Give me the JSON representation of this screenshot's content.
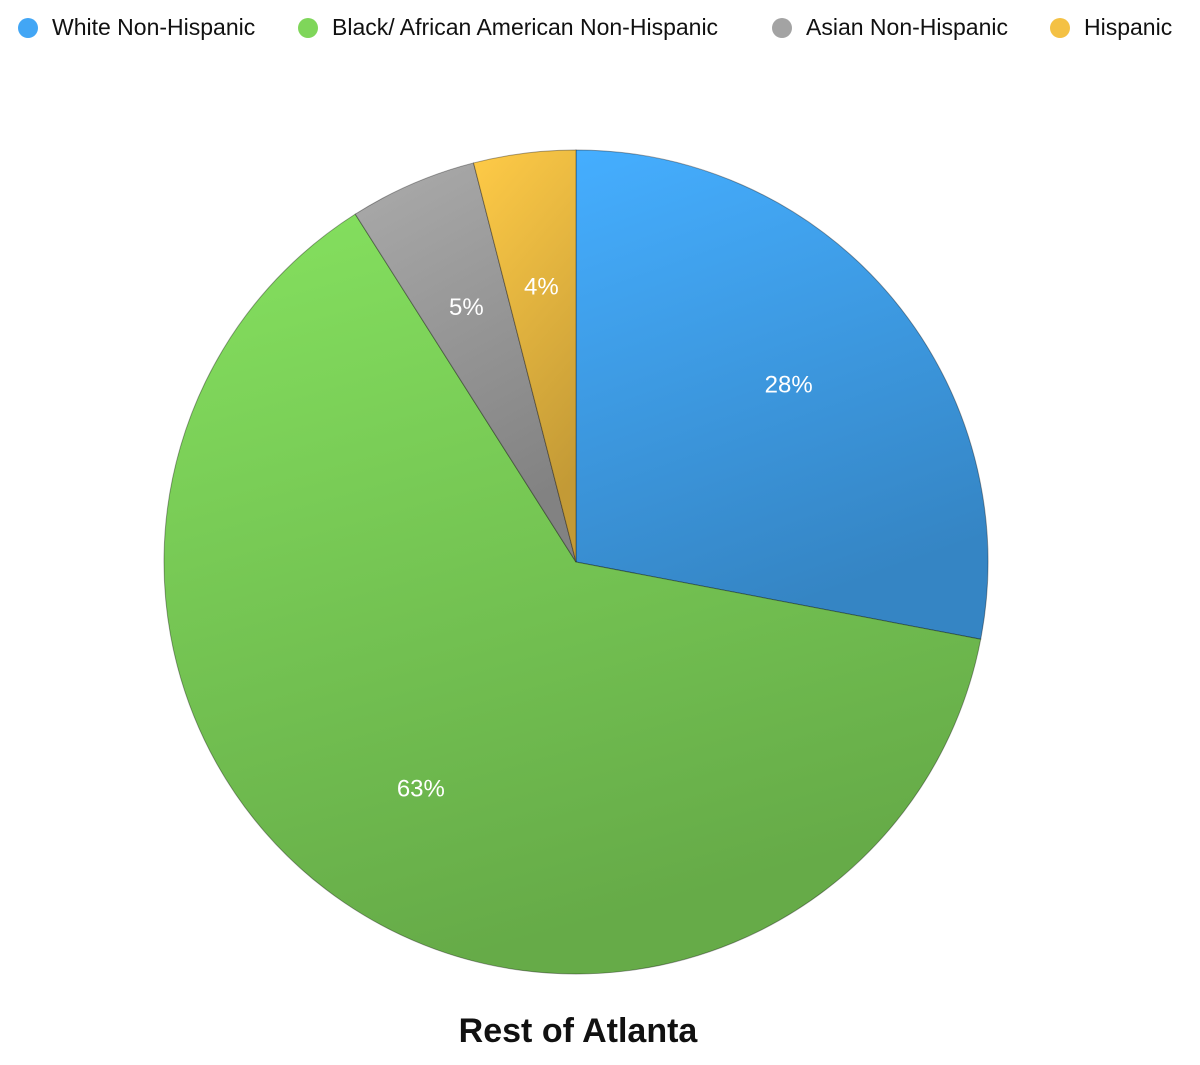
{
  "chart_data": {
    "type": "pie",
    "title": "Rest of Atlanta",
    "categories": [
      "White Non-Hispanic",
      "Black/ African American Non-Hispanic",
      "Asian Non-Hispanic",
      "Hispanic"
    ],
    "values": [
      28,
      63,
      5,
      4
    ],
    "value_labels": [
      "28%",
      "63%",
      "5%",
      "4%"
    ],
    "colors": [
      "#42a6f5",
      "#7fd65a",
      "#a3a3a3",
      "#f4c144"
    ],
    "legend": "top"
  }
}
